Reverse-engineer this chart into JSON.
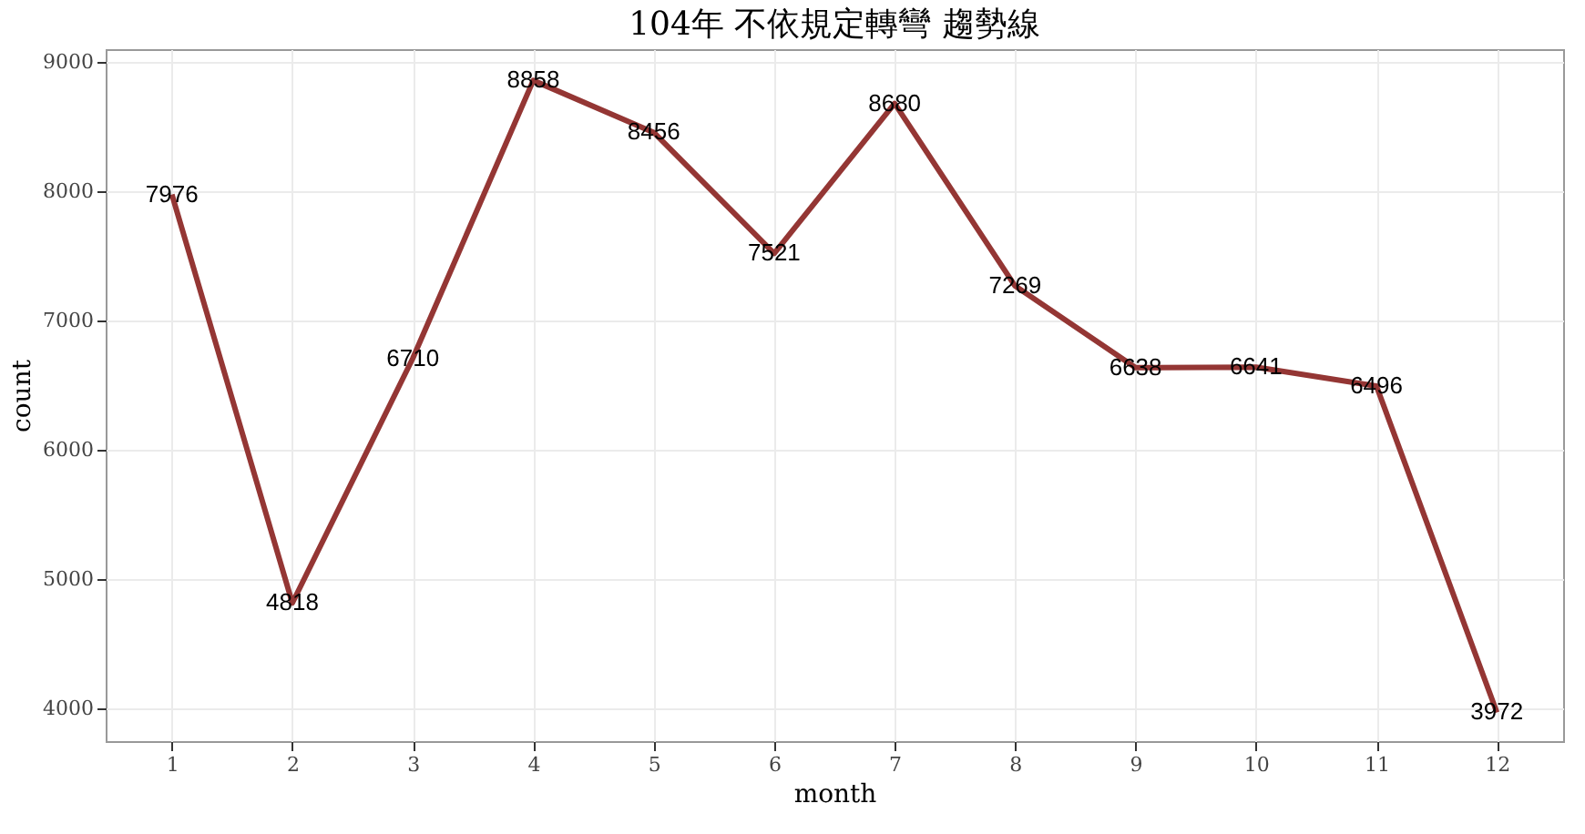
{
  "chart_data": {
    "type": "line",
    "title": "104年 不依規定轉彎 趨勢線",
    "xlabel": "month",
    "ylabel": "count",
    "x": [
      1,
      2,
      3,
      4,
      5,
      6,
      7,
      8,
      9,
      10,
      11,
      12
    ],
    "series": [
      {
        "color": "#943634",
        "values": [
          7976,
          4818,
          6710,
          8858,
          8456,
          7521,
          8680,
          7269,
          6638,
          6641,
          6496,
          3972
        ]
      }
    ],
    "xlim": [
      0.45,
      12.55
    ],
    "xticks": [
      1,
      2,
      3,
      4,
      5,
      6,
      7,
      8,
      9,
      10,
      11,
      12
    ],
    "ylim": [
      3750,
      9100
    ],
    "yticks": [
      4000,
      5000,
      6000,
      7000,
      8000,
      9000
    ],
    "grid": true,
    "data_labels": true
  }
}
